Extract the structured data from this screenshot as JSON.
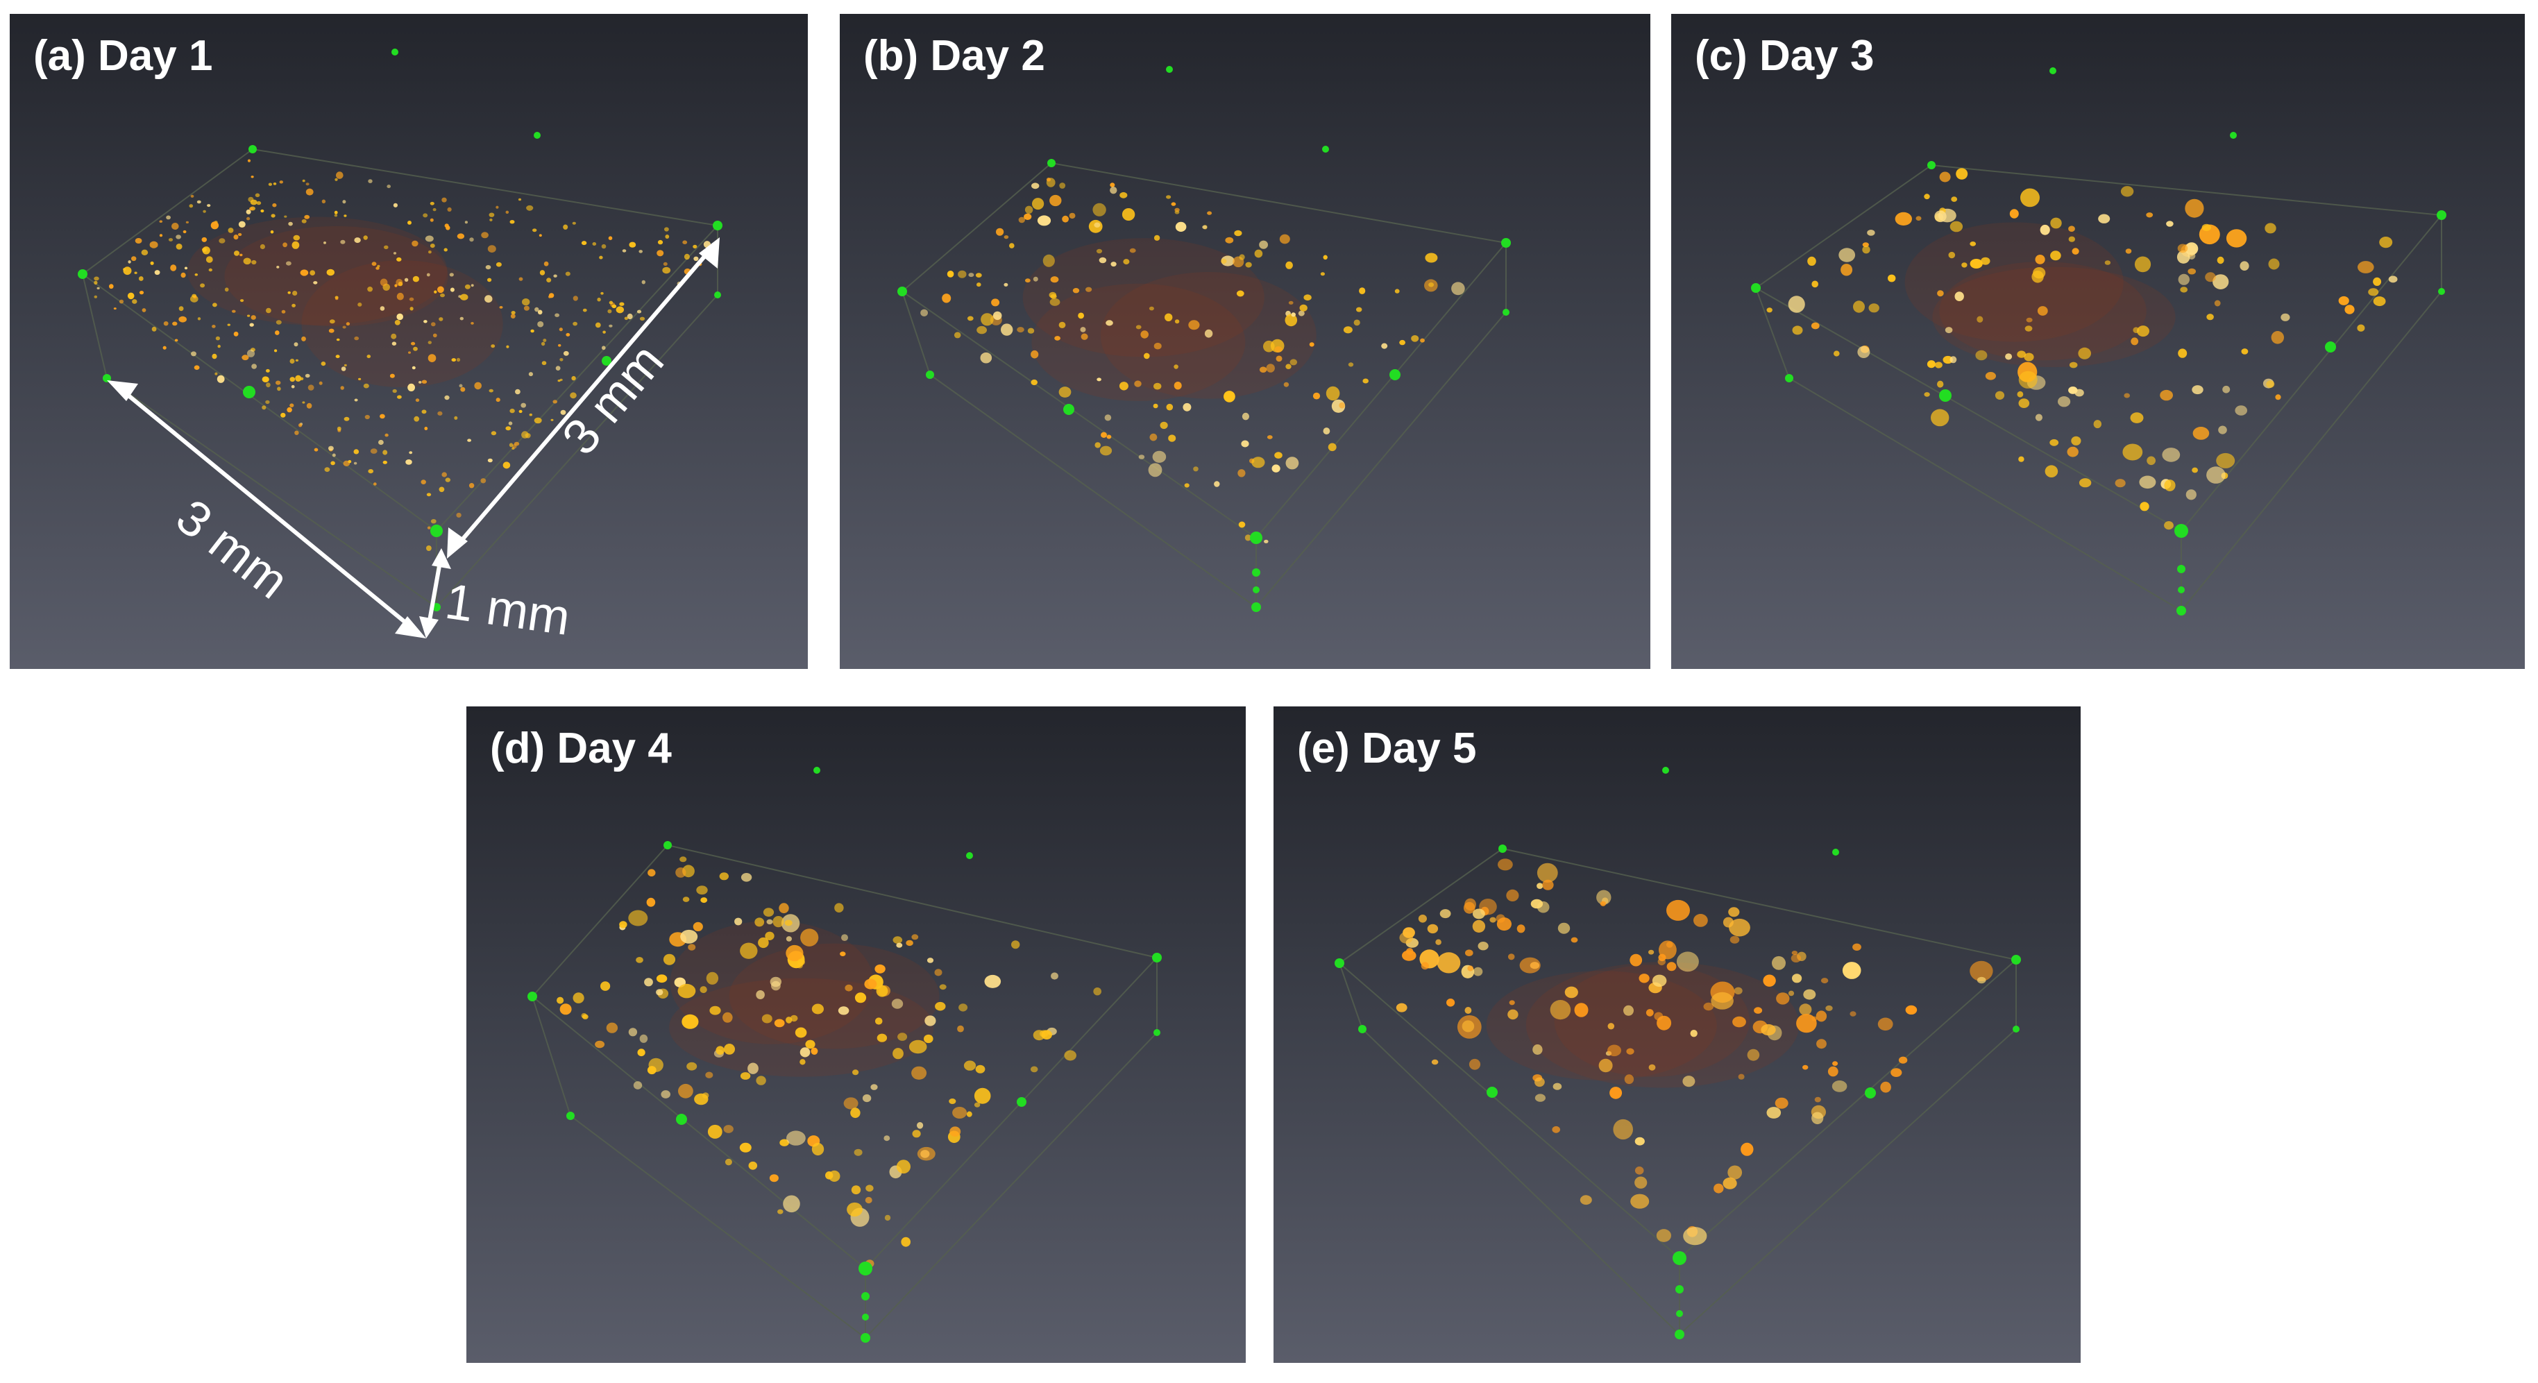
{
  "panels": [
    {
      "id": "a",
      "label": "(a) Day 1"
    },
    {
      "id": "b",
      "label": "(b) Day 2"
    },
    {
      "id": "c",
      "label": "(c) Day 3"
    },
    {
      "id": "d",
      "label": "(d) Day 4"
    },
    {
      "id": "e",
      "label": "(e) Day 5"
    }
  ],
  "dimensions": {
    "length_x": "3 mm",
    "length_y": "3 mm",
    "height": "1 mm"
  },
  "colors": {
    "background_top": "#23252c",
    "background_bottom": "#5a5d6a",
    "particle_bright": "#ffd24a",
    "particle_orange": "#ff9a1a",
    "corner_markers": "#22dd22",
    "annotation": "#ffffff"
  }
}
